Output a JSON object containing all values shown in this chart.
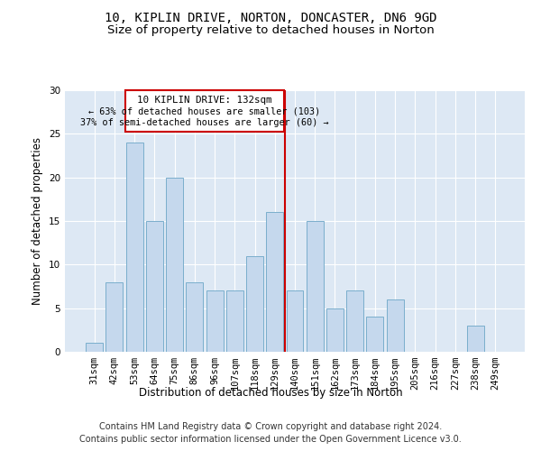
{
  "title1": "10, KIPLIN DRIVE, NORTON, DONCASTER, DN6 9GD",
  "title2": "Size of property relative to detached houses in Norton",
  "xlabel": "Distribution of detached houses by size in Norton",
  "ylabel": "Number of detached properties",
  "categories": [
    "31sqm",
    "42sqm",
    "53sqm",
    "64sqm",
    "75sqm",
    "86sqm",
    "96sqm",
    "107sqm",
    "118sqm",
    "129sqm",
    "140sqm",
    "151sqm",
    "162sqm",
    "173sqm",
    "184sqm",
    "195sqm",
    "205sqm",
    "216sqm",
    "227sqm",
    "238sqm",
    "249sqm"
  ],
  "values": [
    1,
    8,
    24,
    15,
    20,
    8,
    7,
    7,
    11,
    16,
    7,
    15,
    5,
    7,
    4,
    6,
    0,
    0,
    0,
    3,
    0
  ],
  "bar_color": "#c5d8ed",
  "bar_edge_color": "#7aaecc",
  "highlight_label": "10 KIPLIN DRIVE: 132sqm",
  "annotation_line1": "← 63% of detached houses are smaller (103)",
  "annotation_line2": "37% of semi-detached houses are larger (60) →",
  "vline_color": "#cc0000",
  "box_edge_color": "#cc0000",
  "ylim": [
    0,
    30
  ],
  "yticks": [
    0,
    5,
    10,
    15,
    20,
    25,
    30
  ],
  "bg_color": "#dde8f4",
  "footer1": "Contains HM Land Registry data © Crown copyright and database right 2024.",
  "footer2": "Contains public sector information licensed under the Open Government Licence v3.0.",
  "title1_fontsize": 10,
  "title2_fontsize": 9.5,
  "axis_fontsize": 8.5,
  "tick_fontsize": 7.5,
  "footer_fontsize": 7
}
